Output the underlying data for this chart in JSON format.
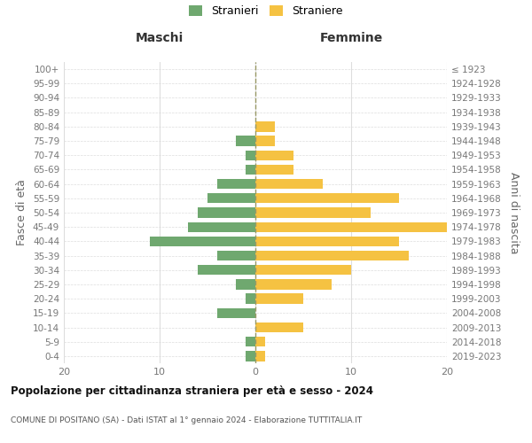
{
  "age_groups": [
    "100+",
    "95-99",
    "90-94",
    "85-89",
    "80-84",
    "75-79",
    "70-74",
    "65-69",
    "60-64",
    "55-59",
    "50-54",
    "45-49",
    "40-44",
    "35-39",
    "30-34",
    "25-29",
    "20-24",
    "15-19",
    "10-14",
    "5-9",
    "0-4"
  ],
  "birth_years": [
    "≤ 1923",
    "1924-1928",
    "1929-1933",
    "1934-1938",
    "1939-1943",
    "1944-1948",
    "1949-1953",
    "1954-1958",
    "1959-1963",
    "1964-1968",
    "1969-1973",
    "1974-1978",
    "1979-1983",
    "1984-1988",
    "1989-1993",
    "1994-1998",
    "1999-2003",
    "2004-2008",
    "2009-2013",
    "2014-2018",
    "2019-2023"
  ],
  "males": [
    0,
    0,
    0,
    0,
    0,
    2,
    1,
    1,
    4,
    5,
    6,
    7,
    11,
    4,
    6,
    2,
    1,
    4,
    0,
    1,
    1
  ],
  "females": [
    0,
    0,
    0,
    0,
    2,
    2,
    4,
    4,
    7,
    15,
    12,
    20,
    15,
    16,
    10,
    8,
    5,
    0,
    5,
    1,
    1
  ],
  "male_color": "#6fa86f",
  "female_color": "#f5c242",
  "center_line_color": "#999966",
  "grid_color": "#dddddd",
  "background_color": "#ffffff",
  "title": "Popolazione per cittadinanza straniera per età e sesso - 2024",
  "subtitle": "COMUNE DI POSITANO (SA) - Dati ISTAT al 1° gennaio 2024 - Elaborazione TUTTITALIA.IT",
  "xlabel_left": "Maschi",
  "xlabel_right": "Femmine",
  "ylabel_left": "Fasce di età",
  "ylabel_right": "Anni di nascita",
  "legend_male": "Stranieri",
  "legend_female": "Straniere",
  "xlim": 20,
  "figsize": [
    6.0,
    5.0
  ],
  "dpi": 100
}
